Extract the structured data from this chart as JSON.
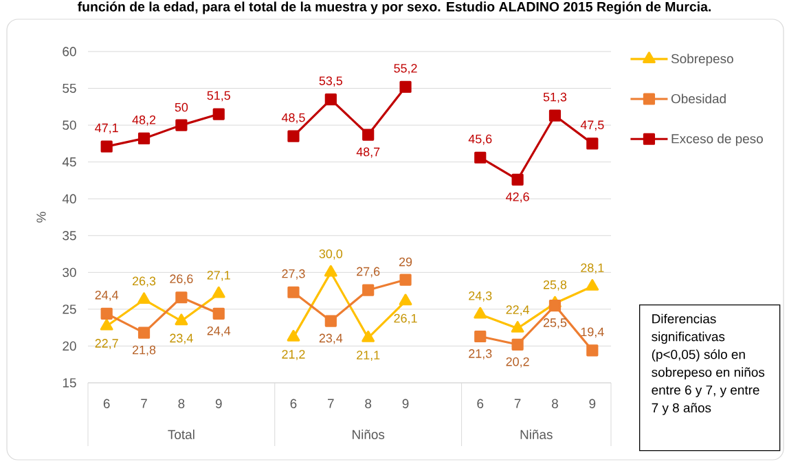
{
  "chart_data": {
    "type": "line",
    "title": "función de la edad, para el total de la muestra y por sexo. Estudio ALADINO 2015 Región de Murcia.",
    "ylabel": "%",
    "categories": [
      "6",
      "7",
      "8",
      "9",
      null,
      "6",
      "7",
      "8",
      "9",
      null,
      "6",
      "7",
      "8",
      "9"
    ],
    "series": [
      {
        "name": "Sobrepeso",
        "color": "#ffc000",
        "marker": "triangle",
        "values": [
          22.7,
          26.3,
          23.4,
          27.1,
          null,
          21.2,
          30.0,
          21.1,
          26.1,
          null,
          24.3,
          22.4,
          25.8,
          28.1
        ],
        "value_labels": [
          "22,7",
          "26,3",
          "23,4",
          "27,1",
          null,
          "21,2",
          "30,0",
          "21,1",
          "26,1",
          null,
          "24,3",
          "22,4",
          "25,8",
          "28,1"
        ]
      },
      {
        "name": "Obesidad",
        "color": "#ed7d31",
        "marker": "square",
        "values": [
          24.4,
          21.8,
          26.6,
          24.4,
          null,
          27.3,
          23.4,
          27.6,
          29,
          null,
          21.3,
          20.2,
          25.5,
          19.4
        ],
        "value_labels": [
          "24,4",
          "21,8",
          "26,6",
          "24,4",
          null,
          "27,3",
          "23,4",
          "27,6",
          "29",
          null,
          "21,3",
          "20,2",
          "25,5",
          "19,4"
        ]
      },
      {
        "name": "Exceso de peso",
        "color": "#c00000",
        "marker": "square",
        "values": [
          47.1,
          48.2,
          50,
          51.5,
          null,
          48.5,
          53.5,
          48.7,
          55.2,
          null,
          45.6,
          42.6,
          51.3,
          47.5
        ],
        "value_labels": [
          "47,1",
          "48,2",
          "50",
          "51,5",
          null,
          "48,5",
          "53,5",
          "48,7",
          "55,2",
          null,
          "45,6",
          "42,6",
          "51,3",
          "47,5"
        ]
      }
    ],
    "ylim": [
      15,
      60
    ],
    "yticks": [
      15,
      20,
      25,
      30,
      35,
      40,
      45,
      50,
      55,
      60
    ],
    "grid": "y",
    "legend": "right",
    "annotations": [
      "Total",
      "Niños",
      "Niñas",
      "Diferencias significativas (p<0,05) sólo en sobrepeso en niños entre 6 y 7, y entre 7 y 8 años"
    ]
  }
}
